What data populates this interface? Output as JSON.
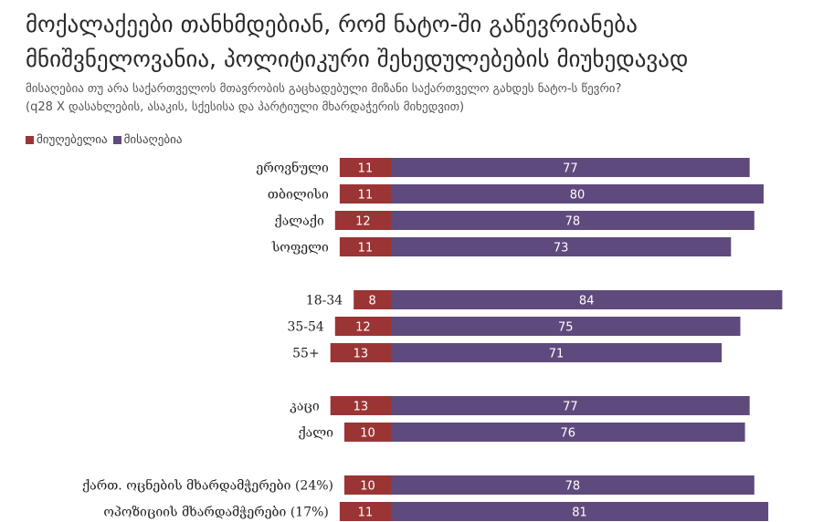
{
  "chart_data": {
    "type": "bar",
    "orientation": "horizontal-diverging",
    "title": "მოქალაქეები თანხმდებიან, რომ ნატო-ში გაწევრიანება მნიშვნელოვანია, პოლიტიკური შეხედულებების მიუხედავად",
    "subtitle": "მისაღებია თუ არა საქართველოს მთავრობის გაცხადებული მიზანი საქართველო გახდეს ნატო-ს წევრი?",
    "note": "(q28 X დასახლების, ასაკის, სქესისა და პარტიული მხარდაჭერის მიხედვით)",
    "legend_position": "top-left",
    "categories": [
      "ეროვნული",
      "თბილისი",
      "ქალაქი",
      "სოფელი",
      "18-34",
      "35-54",
      "55+",
      "კაცი",
      "ქალი",
      "ქართ. ოცნების მხარდამჭერები (24%)",
      "ოპოზიციის მხარდამჭერები (17%)"
    ],
    "groups": [
      [
        0,
        1,
        2,
        3
      ],
      [
        4,
        5,
        6
      ],
      [
        7,
        8
      ],
      [
        9,
        10
      ]
    ],
    "series": [
      {
        "name": "მიუღებელია",
        "color": "#9b3535",
        "values": [
          11,
          11,
          12,
          11,
          8,
          12,
          13,
          13,
          10,
          10,
          11
        ]
      },
      {
        "name": "მისაღებია",
        "color": "#5f4a7d",
        "values": [
          77,
          80,
          78,
          73,
          84,
          75,
          71,
          77,
          76,
          78,
          81
        ]
      }
    ]
  }
}
